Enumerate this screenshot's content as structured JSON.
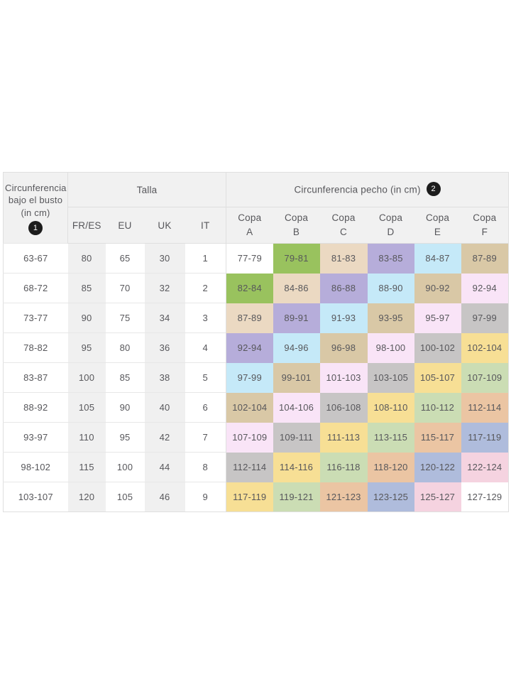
{
  "palette": {
    "band_colors": [
      "#ffffff",
      "#99c25e",
      "#ebd9c2",
      "#b6adda",
      "#c5e9f8",
      "#d9c8a6",
      "#f9e4f7",
      "#c7c5c5",
      "#f7df95",
      "#cbddb4",
      "#ebc5a3",
      "#afbcdc",
      "#f5d3e0",
      "#ffffff"
    ],
    "header_bg": "#f1f1f1",
    "stripe_bg": "#f0f0f0",
    "border": "#dfdfdf",
    "text": "#57575b",
    "badge_bg": "#1c1c1c",
    "badge_text": "#ffffff"
  },
  "header": {
    "underbust_label": "Circunferencia bajo el busto (in cm)",
    "underbust_badge": "1",
    "talla_label": "Talla",
    "size_columns": [
      "FR/ES",
      "EU",
      "UK",
      "IT"
    ],
    "pecho_label": "Circunferencia pecho (in cm)",
    "pecho_badge": "2",
    "cup_word": "Copa",
    "cup_letters": [
      "A",
      "B",
      "C",
      "D",
      "E",
      "F"
    ]
  },
  "chart_data": {
    "type": "table",
    "title": "Circunferencia bajo el busto / Talla / Circunferencia pecho (in cm)",
    "rows": [
      {
        "underbust": "63-67",
        "sizes": [
          "80",
          "65",
          "30",
          "1"
        ],
        "cups": [
          {
            "v": "77-79",
            "band": 0
          },
          {
            "v": "79-81",
            "band": 1
          },
          {
            "v": "81-83",
            "band": 2
          },
          {
            "v": "83-85",
            "band": 3
          },
          {
            "v": "84-87",
            "band": 4
          },
          {
            "v": "87-89",
            "band": 5
          }
        ]
      },
      {
        "underbust": "68-72",
        "sizes": [
          "85",
          "70",
          "32",
          "2"
        ],
        "cups": [
          {
            "v": "82-84",
            "band": 1
          },
          {
            "v": "84-86",
            "band": 2
          },
          {
            "v": "86-88",
            "band": 3
          },
          {
            "v": "88-90",
            "band": 4
          },
          {
            "v": "90-92",
            "band": 5
          },
          {
            "v": "92-94",
            "band": 6
          }
        ]
      },
      {
        "underbust": "73-77",
        "sizes": [
          "90",
          "75",
          "34",
          "3"
        ],
        "cups": [
          {
            "v": "87-89",
            "band": 2
          },
          {
            "v": "89-91",
            "band": 3
          },
          {
            "v": "91-93",
            "band": 4
          },
          {
            "v": "93-95",
            "band": 5
          },
          {
            "v": "95-97",
            "band": 6
          },
          {
            "v": "97-99",
            "band": 7
          }
        ]
      },
      {
        "underbust": "78-82",
        "sizes": [
          "95",
          "80",
          "36",
          "4"
        ],
        "cups": [
          {
            "v": "92-94",
            "band": 3
          },
          {
            "v": "94-96",
            "band": 4
          },
          {
            "v": "96-98",
            "band": 5
          },
          {
            "v": "98-100",
            "band": 6
          },
          {
            "v": "100-102",
            "band": 7
          },
          {
            "v": "102-104",
            "band": 8
          }
        ]
      },
      {
        "underbust": "83-87",
        "sizes": [
          "100",
          "85",
          "38",
          "5"
        ],
        "cups": [
          {
            "v": "97-99",
            "band": 4
          },
          {
            "v": "99-101",
            "band": 5
          },
          {
            "v": "101-103",
            "band": 6
          },
          {
            "v": "103-105",
            "band": 7
          },
          {
            "v": "105-107",
            "band": 8
          },
          {
            "v": "107-109",
            "band": 9
          }
        ]
      },
      {
        "underbust": "88-92",
        "sizes": [
          "105",
          "90",
          "40",
          "6"
        ],
        "cups": [
          {
            "v": "102-104",
            "band": 5
          },
          {
            "v": "104-106",
            "band": 6
          },
          {
            "v": "106-108",
            "band": 7
          },
          {
            "v": "108-110",
            "band": 8
          },
          {
            "v": "110-112",
            "band": 9
          },
          {
            "v": "112-114",
            "band": 10
          }
        ]
      },
      {
        "underbust": "93-97",
        "sizes": [
          "110",
          "95",
          "42",
          "7"
        ],
        "cups": [
          {
            "v": "107-109",
            "band": 6
          },
          {
            "v": "109-111",
            "band": 7
          },
          {
            "v": "111-113",
            "band": 8
          },
          {
            "v": "113-115",
            "band": 9
          },
          {
            "v": "115-117",
            "band": 10
          },
          {
            "v": "117-119",
            "band": 11
          }
        ]
      },
      {
        "underbust": "98-102",
        "sizes": [
          "115",
          "100",
          "44",
          "8"
        ],
        "cups": [
          {
            "v": "112-114",
            "band": 7
          },
          {
            "v": "114-116",
            "band": 8
          },
          {
            "v": "116-118",
            "band": 9
          },
          {
            "v": "118-120",
            "band": 10
          },
          {
            "v": "120-122",
            "band": 11
          },
          {
            "v": "122-124",
            "band": 12
          }
        ]
      },
      {
        "underbust": "103-107",
        "sizes": [
          "120",
          "105",
          "46",
          "9"
        ],
        "cups": [
          {
            "v": "117-119",
            "band": 8
          },
          {
            "v": "119-121",
            "band": 9
          },
          {
            "v": "121-123",
            "band": 10
          },
          {
            "v": "123-125",
            "band": 11
          },
          {
            "v": "125-127",
            "band": 12
          },
          {
            "v": "127-129",
            "band": 13
          }
        ]
      }
    ]
  }
}
